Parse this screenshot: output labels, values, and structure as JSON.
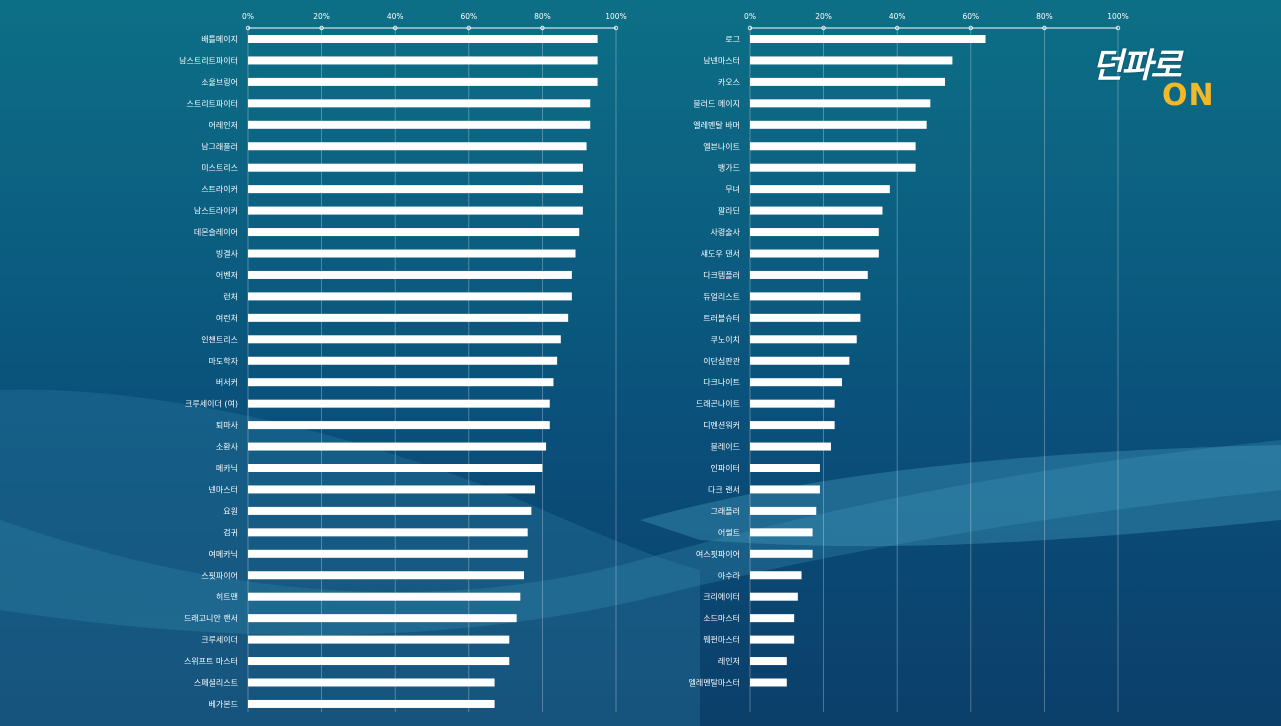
{
  "logo": {
    "text": "던파로",
    "badge": "ON"
  },
  "chart_data": [
    {
      "type": "bar",
      "orientation": "horizontal",
      "xlim": [
        0,
        100
      ],
      "ticks": [
        "0%",
        "20%",
        "40%",
        "60%",
        "80%",
        "100%"
      ],
      "grid": true,
      "color": "#ffffff",
      "categories": [
        "배틀메이지",
        "남스트리트파이터",
        "소울브링어",
        "스트리트파이터",
        "어레인저",
        "남그래플러",
        "미스트리스",
        "스트라이커",
        "남스트라이커",
        "데몬슬레이어",
        "빙결사",
        "어벤저",
        "런처",
        "여런처",
        "인챈트리스",
        "마도학자",
        "버서커",
        "크루세이더 (여)",
        "퇴마사",
        "소환사",
        "메카닉",
        "넨마스터",
        "요원",
        "검귀",
        "여메카닉",
        "스핏파이어",
        "히트맨",
        "드래고니안 랜서",
        "크루세이더",
        "스위프트 마스터",
        "스페셜리스트",
        "베가본드"
      ],
      "values": [
        95,
        95,
        95,
        93,
        93,
        92,
        91,
        91,
        91,
        90,
        89,
        88,
        88,
        87,
        85,
        84,
        83,
        82,
        82,
        81,
        80,
        78,
        77,
        76,
        76,
        75,
        74,
        73,
        71,
        71,
        67,
        67
      ]
    },
    {
      "type": "bar",
      "orientation": "horizontal",
      "xlim": [
        0,
        100
      ],
      "ticks": [
        "0%",
        "20%",
        "40%",
        "60%",
        "80%",
        "100%"
      ],
      "grid": true,
      "color": "#ffffff",
      "categories": [
        "로그",
        "남넨마스터",
        "카오스",
        "블러드 메이지",
        "엘레멘탈 바머",
        "엘븐나이트",
        "뱅가드",
        "무녀",
        "팔라딘",
        "사령술사",
        "섀도우 댄서",
        "다크템플러",
        "듀얼리스트",
        "트러블슈터",
        "쿠노이치",
        "이단심판관",
        "다크나이트",
        "드래곤나이트",
        "디멘션워커",
        "블레이드",
        "인파이터",
        "다크 랜서",
        "그래플러",
        "어썰트",
        "여스핏파이어",
        "아수라",
        "크리에이터",
        "소드마스터",
        "웨펀마스터",
        "레인저",
        "엘레멘탈마스터"
      ],
      "values": [
        64,
        55,
        53,
        49,
        48,
        45,
        45,
        38,
        36,
        35,
        35,
        32,
        30,
        30,
        29,
        27,
        25,
        23,
        23,
        22,
        19,
        19,
        18,
        17,
        17,
        14,
        13,
        12,
        12,
        10,
        10
      ]
    }
  ]
}
